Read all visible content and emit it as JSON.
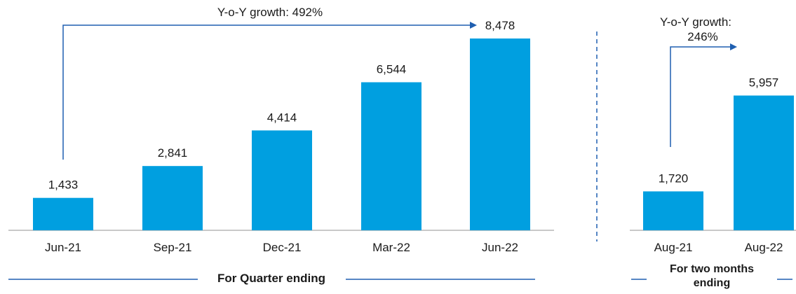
{
  "colors": {
    "bar": "#009fe0",
    "accent_line": "#1f5fb0",
    "axis": "#a6a6a6",
    "text": "#1a1a1a"
  },
  "chart_data": [
    {
      "type": "bar",
      "categories": [
        "Jun-21",
        "Sep-21",
        "Dec-21",
        "Mar-22",
        "Jun-22"
      ],
      "values": [
        1433,
        2841,
        4414,
        6544,
        8478
      ],
      "data_labels": [
        "1,433",
        "2,841",
        "4,414",
        "6,544",
        "8,478"
      ],
      "growth_annotation": "Y-o-Y growth: 492%",
      "group_label": "For Quarter ending",
      "ylim": [
        0,
        9000
      ],
      "grid": false
    },
    {
      "type": "bar",
      "categories": [
        "Aug-21",
        "Aug-22"
      ],
      "values": [
        1720,
        5957
      ],
      "data_labels": [
        "1,720",
        "5,957"
      ],
      "growth_annotation_lines": [
        "Y-o-Y growth:",
        "246%"
      ],
      "group_label_lines": [
        "For two months",
        "ending"
      ],
      "ylim": [
        0,
        9000
      ],
      "grid": false
    }
  ]
}
